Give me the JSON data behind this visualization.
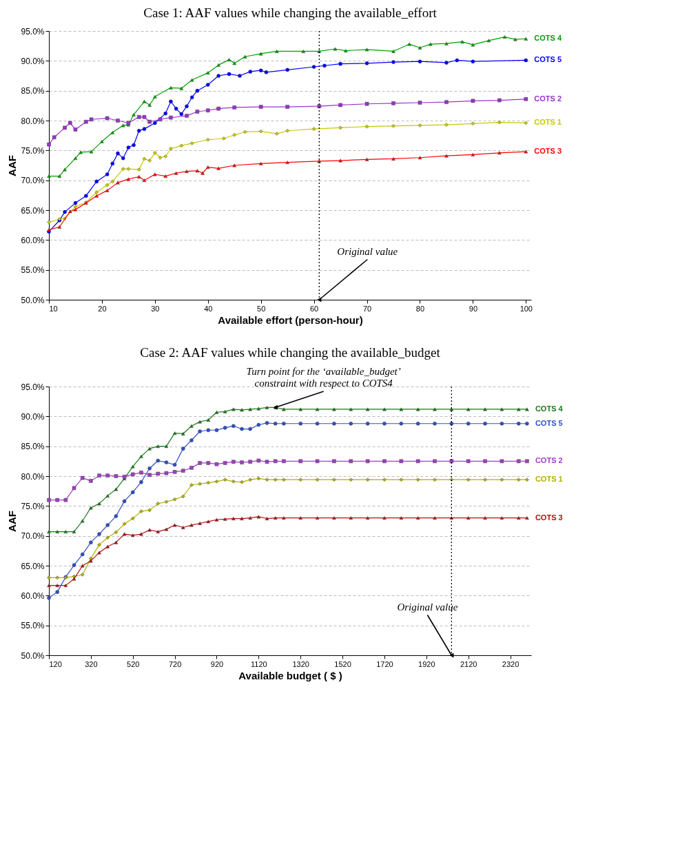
{
  "chart_data": [
    {
      "type": "line",
      "title": "Case 1: AAF values while changing the available_effort",
      "xlabel": "Available effort (person-hour)",
      "ylabel": "AAF",
      "xlim": [
        10,
        101
      ],
      "xticks": [
        10,
        20,
        30,
        40,
        50,
        60,
        70,
        80,
        90,
        100
      ],
      "ylim": [
        50,
        95
      ],
      "yticks": [
        {
          "value": 50,
          "label": "50.0%"
        },
        {
          "value": 55,
          "label": "55.0%"
        },
        {
          "value": 60,
          "label": "60.0%"
        },
        {
          "value": 65,
          "label": "65.0%"
        },
        {
          "value": 70,
          "label": "70.0%"
        },
        {
          "value": 75,
          "label": "75.0%"
        },
        {
          "value": 80,
          "label": "80.0%"
        },
        {
          "value": 85,
          "label": "85.0%"
        },
        {
          "value": 90,
          "label": "90.0%"
        },
        {
          "value": 95,
          "label": "95.0%"
        }
      ],
      "grid": "y",
      "legend": false,
      "ref_lines": [
        {
          "axis": "x",
          "value": 61,
          "line_style": "dotted",
          "color": "#000000"
        }
      ],
      "annotations": [
        {
          "text": "Original value",
          "x": 61,
          "y": 50
        }
      ],
      "series": [
        {
          "name": "COTS 4",
          "color": "#00a000",
          "marker": "triangle",
          "x": [
            10,
            12,
            13,
            15,
            16,
            18,
            20,
            22,
            24,
            25,
            26,
            28,
            29,
            30,
            33,
            35,
            37,
            40,
            42,
            44,
            45,
            47,
            50,
            53,
            58,
            61,
            64,
            66,
            70,
            75,
            78,
            80,
            82,
            85,
            88,
            90,
            93,
            96,
            98,
            100
          ],
          "values": [
            70.7,
            70.7,
            71.8,
            73.7,
            74.7,
            74.8,
            76.5,
            78,
            79.2,
            79.3,
            81.0,
            83.2,
            82.6,
            84,
            85.5,
            85.4,
            86.8,
            88,
            89.3,
            90.2,
            89.6,
            90.7,
            91.2,
            91.6,
            91.6,
            91.6,
            92,
            91.7,
            91.9,
            91.6,
            92.8,
            92.2,
            92.8,
            92.9,
            93.2,
            92.7,
            93.4,
            94.0,
            93.6,
            93.7
          ]
        },
        {
          "name": "COTS 5",
          "color": "#0000ff",
          "marker": "circle",
          "x": [
            10,
            12,
            13,
            15,
            17,
            19,
            21,
            22,
            23,
            24,
            25,
            26,
            27,
            28,
            30,
            32,
            33,
            34,
            35,
            36,
            37,
            38,
            40,
            42,
            44,
            46,
            48,
            50,
            51,
            55,
            60,
            62,
            65,
            70,
            75,
            80,
            85,
            87,
            90,
            100
          ],
          "values": [
            61.4,
            63.3,
            64.7,
            66.2,
            67.4,
            69.8,
            71,
            72.8,
            74.5,
            73.7,
            75.5,
            75.9,
            78.3,
            78.6,
            79.6,
            81.2,
            83.2,
            82,
            81.1,
            82.4,
            83.9,
            85,
            86,
            87.5,
            87.8,
            87.5,
            88.2,
            88.4,
            88.1,
            88.5,
            89.0,
            89.2,
            89.5,
            89.6,
            89.8,
            89.9,
            89.7,
            90.1,
            89.9,
            90.1
          ]
        },
        {
          "name": "COTS 2",
          "color": "#9933cc",
          "marker": "square",
          "x": [
            10,
            11,
            13,
            14,
            15,
            17,
            18,
            21,
            23,
            25,
            27,
            28,
            29,
            31,
            33,
            36,
            38,
            40,
            42,
            45,
            50,
            55,
            61,
            65,
            70,
            75,
            80,
            85,
            90,
            95,
            100
          ],
          "values": [
            76,
            77.2,
            78.8,
            79.6,
            78.5,
            79.8,
            80.2,
            80.4,
            80,
            79.6,
            80.6,
            80.6,
            79.8,
            80.2,
            80.5,
            80.8,
            81.5,
            81.7,
            82.0,
            82.2,
            82.3,
            82.3,
            82.4,
            82.6,
            82.8,
            82.9,
            83.0,
            83.1,
            83.3,
            83.4,
            83.6
          ]
        },
        {
          "name": "COTS 1",
          "color": "#c8c800",
          "marker": "diamond",
          "x": [
            10,
            12,
            13,
            15,
            17,
            19,
            21,
            22,
            24,
            25,
            27,
            28,
            29,
            30,
            31,
            32,
            33,
            35,
            37,
            40,
            43,
            45,
            47,
            50,
            53,
            55,
            60,
            65,
            70,
            75,
            80,
            85,
            90,
            95,
            100
          ],
          "values": [
            63,
            63.5,
            63.6,
            65.6,
            66.3,
            68.0,
            69.2,
            69.8,
            71.9,
            71.9,
            71.8,
            73.6,
            73.3,
            74.6,
            73.8,
            74,
            75.3,
            75.8,
            76.2,
            76.8,
            77,
            77.6,
            78.1,
            78.2,
            77.8,
            78.3,
            78.6,
            78.8,
            79,
            79.1,
            79.2,
            79.3,
            79.5,
            79.7,
            79.6
          ]
        },
        {
          "name": "COTS 3",
          "color": "#ff0000",
          "marker": "triangle",
          "x": [
            10,
            12,
            14,
            15,
            17,
            19,
            21,
            23,
            25,
            27,
            28,
            30,
            32,
            34,
            36,
            38,
            39,
            40,
            42,
            45,
            50,
            55,
            61,
            65,
            70,
            75,
            80,
            85,
            90,
            95,
            100
          ],
          "values": [
            61.7,
            62.2,
            64.8,
            65.1,
            66.2,
            67.4,
            68.3,
            69.6,
            70.2,
            70.6,
            70.0,
            71,
            70.7,
            71.2,
            71.5,
            71.6,
            71.2,
            72.2,
            72.0,
            72.5,
            72.8,
            73.0,
            73.2,
            73.3,
            73.5,
            73.6,
            73.8,
            74.1,
            74.3,
            74.6,
            74.8
          ]
        }
      ]
    },
    {
      "type": "line",
      "title": "Case 2: AAF values while changing the available_budget",
      "xlabel": "Available budget ( $ )",
      "ylabel": "AAF",
      "xlim": [
        120,
        2420
      ],
      "xticks": [
        120,
        320,
        520,
        720,
        920,
        1120,
        1320,
        1520,
        1720,
        1920,
        2120,
        2320
      ],
      "ylim": [
        50,
        95
      ],
      "yticks": [
        {
          "value": 50,
          "label": "50.0%"
        },
        {
          "value": 55,
          "label": "55.0%"
        },
        {
          "value": 60,
          "label": "60.0%"
        },
        {
          "value": 65,
          "label": "65.0%"
        },
        {
          "value": 70,
          "label": "70.0%"
        },
        {
          "value": 75,
          "label": "75.0%"
        },
        {
          "value": 80,
          "label": "80.0%"
        },
        {
          "value": 85,
          "label": "85.0%"
        },
        {
          "value": 90,
          "label": "90.0%"
        },
        {
          "value": 95,
          "label": "95.0%"
        }
      ],
      "grid": "y",
      "legend": false,
      "ref_lines": [
        {
          "axis": "x",
          "value": 2040,
          "line_style": "dotted",
          "color": "#000000"
        }
      ],
      "annotations": [
        {
          "text": "Original value",
          "x": 2040,
          "y": 50
        },
        {
          "text": "Turn point for the ‘available_budget’ constraint with respect to COTS4",
          "x": 1200,
          "y": 91.5
        }
      ],
      "x": [
        120,
        160,
        200,
        240,
        280,
        320,
        360,
        400,
        440,
        480,
        520,
        560,
        600,
        640,
        680,
        720,
        760,
        800,
        840,
        880,
        920,
        960,
        1000,
        1040,
        1080,
        1120,
        1160,
        1200,
        1240,
        1320,
        1400,
        1480,
        1560,
        1640,
        1720,
        1800,
        1880,
        1960,
        2040,
        2120,
        2200,
        2280,
        2360,
        2400
      ],
      "series": [
        {
          "name": "COTS 4",
          "color": "#1a7a1a",
          "marker": "triangle",
          "values": [
            70.7,
            70.7,
            70.7,
            70.7,
            72.5,
            74.7,
            75.4,
            76.7,
            77.8,
            79.6,
            81.6,
            83.3,
            84.6,
            85.0,
            85.0,
            87.2,
            87.1,
            88.4,
            89.1,
            89.4,
            90.7,
            90.8,
            91.2,
            91.1,
            91.2,
            91.3,
            91.5,
            91.5,
            91.2,
            91.2,
            91.2,
            91.2,
            91.2,
            91.2,
            91.2,
            91.2,
            91.2,
            91.2,
            91.2,
            91.2,
            91.2,
            91.2,
            91.2,
            91.2
          ]
        },
        {
          "name": "COTS 5",
          "color": "#3050c8",
          "marker": "circle",
          "values": [
            59.6,
            60.6,
            63.1,
            65.1,
            66.9,
            68.9,
            70.3,
            71.8,
            73.3,
            75.8,
            77.3,
            79,
            81.3,
            82.6,
            82.3,
            81.9,
            84.6,
            86,
            87.5,
            87.7,
            87.7,
            88.1,
            88.4,
            87.9,
            87.9,
            88.6,
            88.9,
            88.8,
            88.8,
            88.8,
            88.8,
            88.8,
            88.8,
            88.8,
            88.8,
            88.8,
            88.8,
            88.8,
            88.8,
            88.8,
            88.8,
            88.8,
            88.8,
            88.8
          ]
        },
        {
          "name": "COTS 2",
          "color": "#a040c0",
          "marker": "square",
          "values": [
            76,
            76,
            76,
            78,
            79.7,
            79.2,
            80.1,
            80.1,
            80,
            79.9,
            80.3,
            80.6,
            80.2,
            80.4,
            80.5,
            80.7,
            80.9,
            81.4,
            82.2,
            82.2,
            82,
            82.2,
            82.4,
            82.3,
            82.4,
            82.6,
            82.4,
            82.5,
            82.5,
            82.5,
            82.5,
            82.5,
            82.5,
            82.5,
            82.5,
            82.5,
            82.5,
            82.5,
            82.5,
            82.5,
            82.5,
            82.5,
            82.5,
            82.5
          ]
        },
        {
          "name": "COTS 1",
          "color": "#b0b000",
          "marker": "diamond",
          "values": [
            63.0,
            63.0,
            63.0,
            63.2,
            63.5,
            66.2,
            68.5,
            69.7,
            70.6,
            72,
            72.9,
            74.1,
            74.3,
            75.4,
            75.7,
            76.1,
            76.6,
            78.5,
            78.7,
            78.9,
            79.1,
            79.4,
            79.1,
            79,
            79.4,
            79.6,
            79.4,
            79.4,
            79.4,
            79.4,
            79.4,
            79.4,
            79.4,
            79.4,
            79.4,
            79.4,
            79.4,
            79.4,
            79.4,
            79.4,
            79.4,
            79.4,
            79.4,
            79.4
          ]
        },
        {
          "name": "COTS 3",
          "color": "#b01010",
          "marker": "triangle",
          "values": [
            61.7,
            61.7,
            61.7,
            62.8,
            65,
            65.8,
            67.2,
            68.2,
            68.9,
            70.3,
            70.1,
            70.3,
            71,
            70.7,
            71.1,
            71.8,
            71.4,
            71.8,
            72.1,
            72.4,
            72.7,
            72.8,
            72.9,
            72.9,
            73,
            73.2,
            72.9,
            73,
            73,
            73,
            73,
            73,
            73,
            73,
            73,
            73,
            73,
            73,
            73,
            73,
            73,
            73,
            73,
            73
          ]
        }
      ]
    }
  ]
}
